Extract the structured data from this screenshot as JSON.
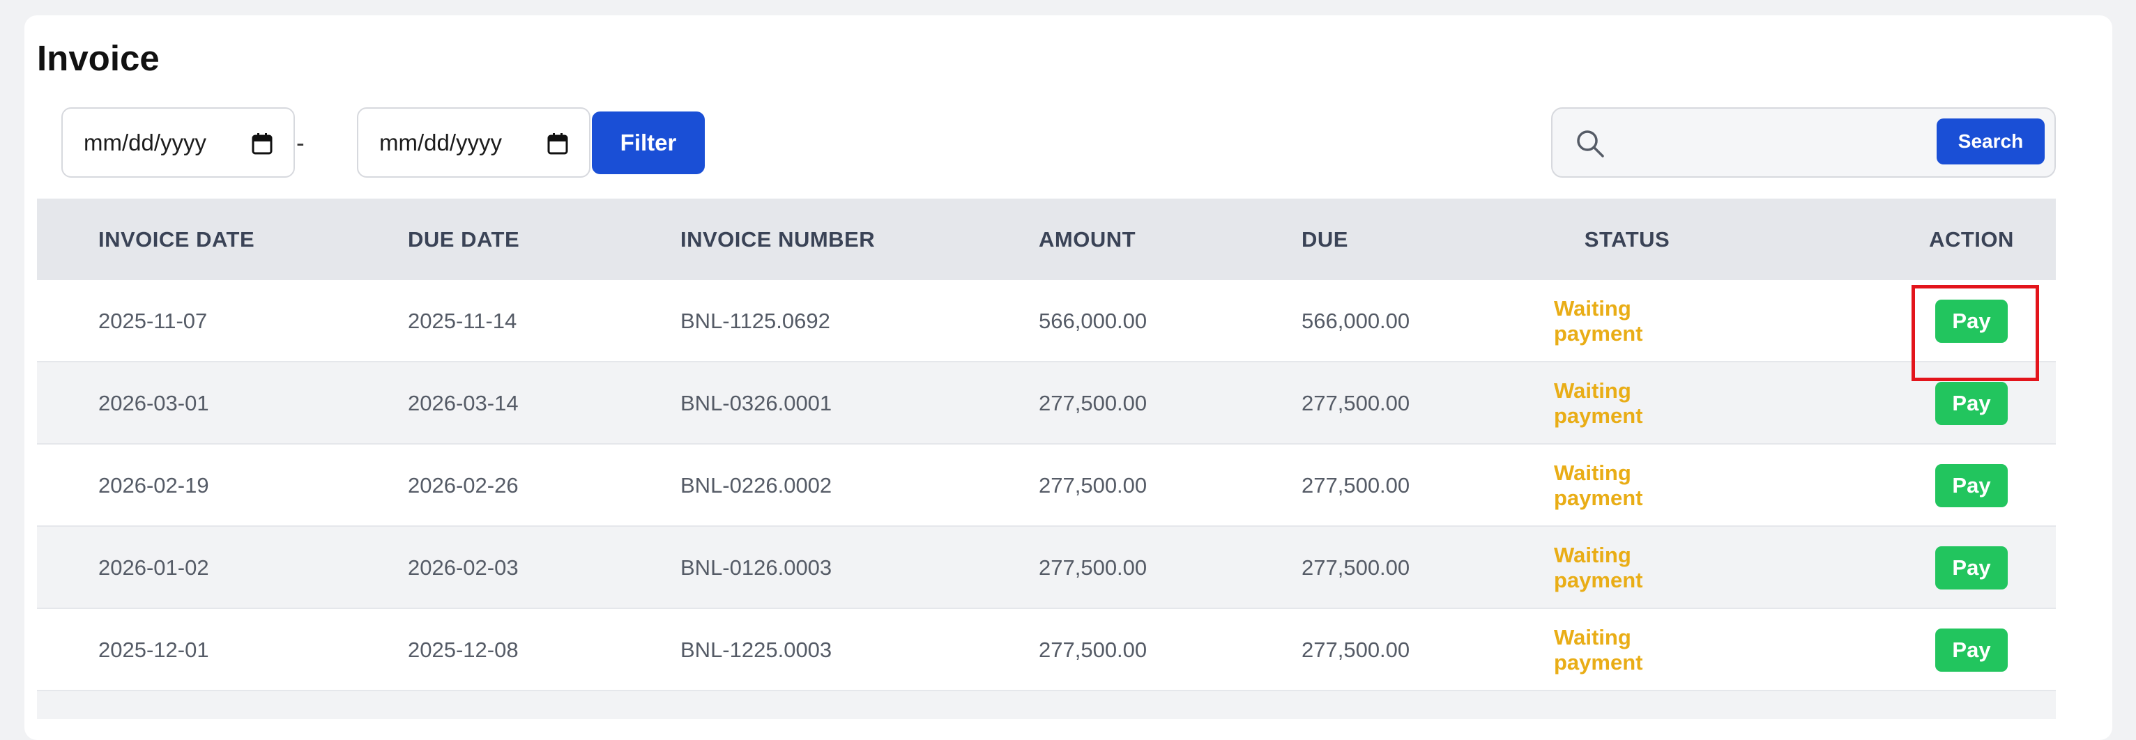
{
  "page": {
    "title": "Invoice"
  },
  "filters": {
    "start_date_placeholder": "mm/dd/yyyy",
    "separator": "-",
    "end_date_placeholder": "mm/dd/yyyy",
    "filter_label": "Filter"
  },
  "search": {
    "value": "",
    "button_label": "Search"
  },
  "table": {
    "columns": [
      "INVOICE DATE",
      "DUE DATE",
      "INVOICE NUMBER",
      "AMOUNT",
      "DUE",
      "STATUS",
      "ACTION"
    ],
    "rows": [
      {
        "invoice_date": "2025-11-07",
        "due_date": "2025-11-14",
        "invoice_number": "BNL-1125.0692",
        "amount": "566,000.00",
        "due": "566,000.00",
        "status": "Waiting payment",
        "action": "Pay"
      },
      {
        "invoice_date": "2026-03-01",
        "due_date": "2026-03-14",
        "invoice_number": "BNL-0326.0001",
        "amount": "277,500.00",
        "due": "277,500.00",
        "status": "Waiting payment",
        "action": "Pay"
      },
      {
        "invoice_date": "2026-02-19",
        "due_date": "2026-02-26",
        "invoice_number": "BNL-0226.0002",
        "amount": "277,500.00",
        "due": "277,500.00",
        "status": "Waiting payment",
        "action": "Pay"
      },
      {
        "invoice_date": "2026-01-02",
        "due_date": "2026-02-03",
        "invoice_number": "BNL-0126.0003",
        "amount": "277,500.00",
        "due": "277,500.00",
        "status": "Waiting payment",
        "action": "Pay"
      },
      {
        "invoice_date": "2025-12-01",
        "due_date": "2025-12-08",
        "invoice_number": "BNL-1225.0003",
        "amount": "277,500.00",
        "due": "277,500.00",
        "status": "Waiting payment",
        "action": "Pay"
      }
    ]
  },
  "colors": {
    "primary": "#1a4fd6",
    "pay_button": "#22c55e",
    "status_waiting": "#e9ad16",
    "highlight_box": "#e3141b"
  },
  "icons": {
    "date_picker": "calendar-icon",
    "search": "search-icon"
  }
}
